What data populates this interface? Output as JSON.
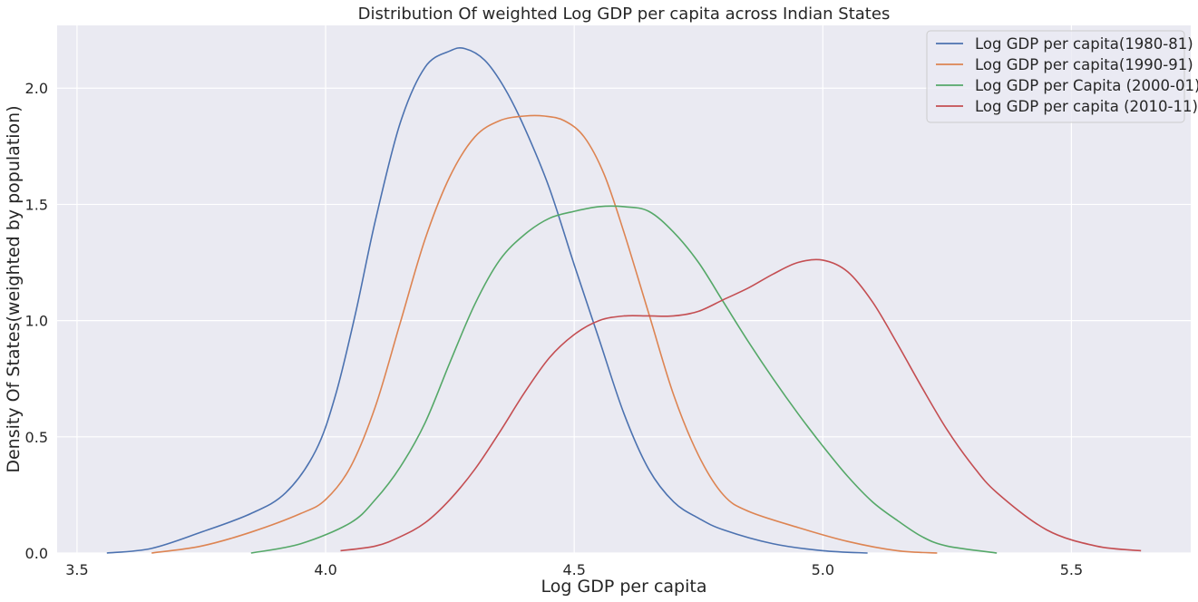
{
  "chart_data": {
    "type": "line",
    "title": "Distribution Of weighted Log GDP per capita across Indian States",
    "xlabel": "Log GDP per capita",
    "ylabel": "Density Of States(weighted by population)",
    "xlim": [
      3.46,
      5.74
    ],
    "ylim": [
      0,
      2.27
    ],
    "xticks": [
      3.5,
      4.0,
      4.5,
      5.0,
      5.5
    ],
    "xtick_labels": [
      "3.5",
      "4.0",
      "4.5",
      "5.0",
      "5.5"
    ],
    "yticks": [
      0.0,
      0.5,
      1.0,
      1.5,
      2.0
    ],
    "ytick_labels": [
      "0.0",
      "0.5",
      "1.0",
      "1.5",
      "2.0"
    ],
    "grid": true,
    "background": "#eaeaf2",
    "legend_position": "top-right",
    "series": [
      {
        "name": "Log GDP per capita(1980-81)",
        "color": "#4c72b0",
        "x": [
          3.56,
          3.65,
          3.75,
          3.85,
          3.92,
          3.98,
          4.02,
          4.06,
          4.1,
          4.15,
          4.2,
          4.25,
          4.28,
          4.32,
          4.36,
          4.4,
          4.45,
          4.5,
          4.55,
          4.6,
          4.65,
          4.7,
          4.75,
          4.8,
          4.9,
          5.0,
          5.09
        ],
        "y": [
          0.0,
          0.02,
          0.09,
          0.17,
          0.26,
          0.44,
          0.68,
          1.03,
          1.43,
          1.85,
          2.09,
          2.16,
          2.17,
          2.12,
          2.0,
          1.83,
          1.57,
          1.24,
          0.92,
          0.6,
          0.36,
          0.22,
          0.15,
          0.1,
          0.04,
          0.01,
          0.0
        ]
      },
      {
        "name": "Log GDP per capita(1990-91)",
        "color": "#dd8452",
        "x": [
          3.65,
          3.75,
          3.85,
          3.95,
          4.0,
          4.05,
          4.1,
          4.15,
          4.2,
          4.25,
          4.3,
          4.35,
          4.4,
          4.44,
          4.48,
          4.52,
          4.56,
          4.6,
          4.65,
          4.7,
          4.75,
          4.8,
          4.85,
          4.95,
          5.05,
          5.15,
          5.23
        ],
        "y": [
          0.0,
          0.03,
          0.09,
          0.17,
          0.23,
          0.37,
          0.63,
          0.99,
          1.35,
          1.62,
          1.79,
          1.86,
          1.88,
          1.88,
          1.86,
          1.79,
          1.63,
          1.38,
          1.03,
          0.68,
          0.42,
          0.25,
          0.18,
          0.11,
          0.05,
          0.01,
          0.0
        ]
      },
      {
        "name": "Log GDP per Capita (2000-01)",
        "color": "#55a868",
        "x": [
          3.85,
          3.95,
          4.05,
          4.1,
          4.15,
          4.2,
          4.25,
          4.3,
          4.35,
          4.4,
          4.45,
          4.5,
          4.55,
          4.6,
          4.65,
          4.7,
          4.75,
          4.8,
          4.85,
          4.9,
          4.95,
          5.0,
          5.05,
          5.1,
          5.15,
          5.2,
          5.25,
          5.35
        ],
        "y": [
          0.0,
          0.04,
          0.13,
          0.23,
          0.37,
          0.56,
          0.82,
          1.07,
          1.26,
          1.37,
          1.44,
          1.47,
          1.49,
          1.49,
          1.47,
          1.38,
          1.25,
          1.08,
          0.91,
          0.75,
          0.6,
          0.46,
          0.33,
          0.22,
          0.14,
          0.07,
          0.03,
          0.0
        ]
      },
      {
        "name": "Log GDP per capita (2010-11)",
        "color": "#c44e52",
        "x": [
          4.03,
          4.1,
          4.15,
          4.2,
          4.25,
          4.3,
          4.35,
          4.4,
          4.45,
          4.5,
          4.55,
          4.6,
          4.65,
          4.7,
          4.75,
          4.8,
          4.85,
          4.9,
          4.95,
          5.0,
          5.05,
          5.1,
          5.15,
          5.2,
          5.25,
          5.3,
          5.35,
          5.45,
          5.55,
          5.64
        ],
        "y": [
          0.01,
          0.03,
          0.07,
          0.13,
          0.23,
          0.36,
          0.52,
          0.69,
          0.84,
          0.94,
          1.0,
          1.02,
          1.02,
          1.02,
          1.04,
          1.09,
          1.14,
          1.2,
          1.25,
          1.26,
          1.21,
          1.08,
          0.9,
          0.71,
          0.53,
          0.38,
          0.26,
          0.1,
          0.03,
          0.01
        ]
      }
    ]
  }
}
